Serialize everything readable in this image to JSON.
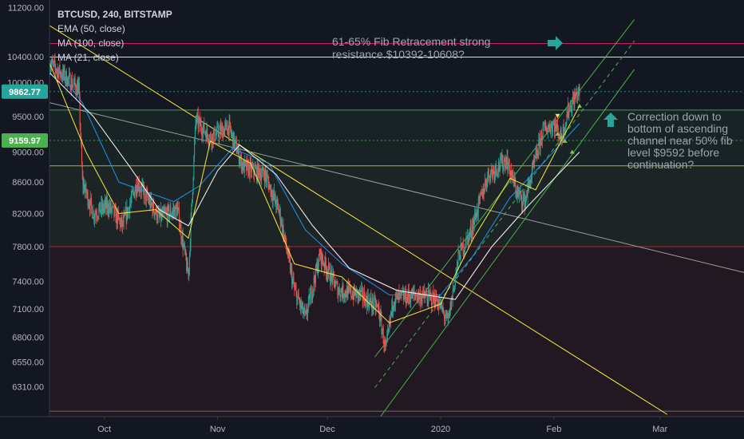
{
  "chart_data": {
    "type": "candlestick",
    "legend": {
      "title": "BTCUSD, 240, BITSTAMP",
      "indicators": [
        "EMA (50, close)",
        "MA (100, close)",
        "MA (21, close)"
      ]
    },
    "y_axis": {
      "scale": "log",
      "ticks": [
        11200,
        10400,
        10000,
        9500,
        9000,
        8600,
        8200,
        7800,
        7400,
        7100,
        6800,
        6550,
        6310
      ],
      "tick_labels": [
        "11200.00",
        "10400.00",
        "10000.00",
        "9500.00",
        "9000.00",
        "8600.00",
        "8200.00",
        "7800.00",
        "7400.00",
        "7100.00",
        "6800.00",
        "6550.00",
        "6310.00"
      ],
      "ylim": [
        6030,
        11330
      ]
    },
    "x_axis": {
      "ticks": [
        {
          "label": "Oct",
          "date": "2019-10-01"
        },
        {
          "label": "Nov",
          "date": "2019-11-01"
        },
        {
          "label": "Dec",
          "date": "2019-12-01"
        },
        {
          "label": "2020",
          "date": "2020-01-01"
        },
        {
          "label": "Feb",
          "date": "2020-02-01"
        },
        {
          "label": "Mar",
          "date": "2020-03-01"
        }
      ],
      "xlim": [
        "2019-09-16",
        "2020-03-24"
      ]
    },
    "price_tags": [
      {
        "value": 9862.77,
        "label": "9862.77",
        "color": "#26a69a"
      },
      {
        "value": 9159.97,
        "label": "9159.97",
        "color": "#4caf50"
      }
    ],
    "horizontal_levels": [
      {
        "value": 10608,
        "color": "#e91e63"
      },
      {
        "value": 10392,
        "color": "#ffffff"
      },
      {
        "value": 9592,
        "color": "#4caf50"
      },
      {
        "value": 8815,
        "color": "#c8c832"
      },
      {
        "value": 7800,
        "color": "#c62828"
      },
      {
        "value": 6080,
        "color": "#787b86"
      }
    ],
    "zones": [
      {
        "from": 9592,
        "to": 8815,
        "color": "#4caf50"
      },
      {
        "from": 8815,
        "to": 7800,
        "color": "#8bc34a"
      },
      {
        "from": 7800,
        "to": 6030,
        "color": "#c62828"
      }
    ],
    "trend_lines": [
      {
        "from": {
          "x": "2019-09-16",
          "y": 10900
        },
        "to": {
          "x": "2020-03-03",
          "y": 6050
        },
        "color": "#ffeb3b",
        "dashed": false
      },
      {
        "from": {
          "x": "2019-09-16",
          "y": 9700
        },
        "to": {
          "x": "2020-03-24",
          "y": 7500
        },
        "color": "#9e9e9e",
        "dashed": false
      },
      {
        "from": {
          "x": "2019-12-14",
          "y": 6600
        },
        "to": {
          "x": "2020-02-23",
          "y": 11000
        },
        "color": "#4caf50",
        "dashed": false
      },
      {
        "from": {
          "x": "2019-12-14",
          "y": 6300
        },
        "to": {
          "x": "2020-02-23",
          "y": 10650
        },
        "color": "#4caf50",
        "dashed": true
      },
      {
        "from": {
          "x": "2019-12-14",
          "y": 5960
        },
        "to": {
          "x": "2020-02-23",
          "y": 10200
        },
        "color": "#4caf50",
        "dashed": false
      }
    ],
    "ohlc_path": [
      [
        "2019-09-16",
        10300
      ],
      [
        "2019-09-20",
        10100
      ],
      [
        "2019-09-24",
        9900
      ],
      [
        "2019-09-25",
        8600
      ],
      [
        "2019-09-28",
        8200
      ],
      [
        "2019-10-02",
        8300
      ],
      [
        "2019-10-06",
        8050
      ],
      [
        "2019-10-10",
        8600
      ],
      [
        "2019-10-16",
        8150
      ],
      [
        "2019-10-21",
        8250
      ],
      [
        "2019-10-24",
        7450
      ],
      [
        "2019-10-26",
        9450
      ],
      [
        "2019-10-30",
        9200
      ],
      [
        "2019-11-04",
        9350
      ],
      [
        "2019-11-08",
        8800
      ],
      [
        "2019-11-14",
        8700
      ],
      [
        "2019-11-18",
        8200
      ],
      [
        "2019-11-22",
        7300
      ],
      [
        "2019-11-25",
        7000
      ],
      [
        "2019-11-29",
        7700
      ],
      [
        "2019-12-04",
        7300
      ],
      [
        "2019-12-10",
        7250
      ],
      [
        "2019-12-15",
        7100
      ],
      [
        "2019-12-17",
        6650
      ],
      [
        "2019-12-19",
        7200
      ],
      [
        "2019-12-25",
        7250
      ],
      [
        "2019-12-31",
        7200
      ],
      [
        "2020-01-03",
        6950
      ],
      [
        "2020-01-06",
        7700
      ],
      [
        "2020-01-09",
        7950
      ],
      [
        "2020-01-14",
        8700
      ],
      [
        "2020-01-19",
        8900
      ],
      [
        "2020-01-22",
        8450
      ],
      [
        "2020-01-24",
        8350
      ],
      [
        "2020-01-29",
        9300
      ],
      [
        "2020-02-01",
        9400
      ],
      [
        "2020-02-03",
        9200
      ],
      [
        "2020-02-05",
        9600
      ],
      [
        "2020-02-07",
        9800
      ],
      [
        "2020-02-08",
        9862.77
      ]
    ],
    "moving_averages": [
      {
        "name": "EMA (50, close)",
        "color": "#2196f3",
        "points": [
          [
            "2019-09-16",
            10350
          ],
          [
            "2019-09-25",
            9700
          ],
          [
            "2019-10-05",
            8600
          ],
          [
            "2019-10-20",
            8350
          ],
          [
            "2019-10-27",
            8550
          ],
          [
            "2019-11-05",
            9050
          ],
          [
            "2019-11-15",
            8850
          ],
          [
            "2019-11-25",
            8000
          ],
          [
            "2019-12-05",
            7600
          ],
          [
            "2019-12-18",
            7250
          ],
          [
            "2020-01-01",
            7250
          ],
          [
            "2020-01-10",
            7700
          ],
          [
            "2020-01-20",
            8400
          ],
          [
            "2020-01-30",
            8900
          ],
          [
            "2020-02-08",
            9400
          ]
        ]
      },
      {
        "name": "MA (100, close)",
        "color": "#ffffff",
        "points": [
          [
            "2019-09-16",
            10150
          ],
          [
            "2019-09-28",
            9500
          ],
          [
            "2019-10-08",
            8800
          ],
          [
            "2019-10-16",
            8250
          ],
          [
            "2019-10-24",
            8050
          ],
          [
            "2019-11-01",
            8750
          ],
          [
            "2019-11-07",
            9100
          ],
          [
            "2019-11-17",
            8700
          ],
          [
            "2019-11-27",
            8050
          ],
          [
            "2019-12-07",
            7550
          ],
          [
            "2019-12-20",
            7300
          ],
          [
            "2020-01-05",
            7200
          ],
          [
            "2020-01-15",
            7800
          ],
          [
            "2020-01-25",
            8300
          ],
          [
            "2020-02-08",
            9000
          ]
        ]
      },
      {
        "name": "MA (21, close)",
        "color": "#ffeb3b",
        "points": [
          [
            "2019-09-16",
            10300
          ],
          [
            "2019-09-26",
            9000
          ],
          [
            "2019-10-05",
            8200
          ],
          [
            "2019-10-15",
            8250
          ],
          [
            "2019-10-24",
            7900
          ],
          [
            "2019-10-30",
            9150
          ],
          [
            "2019-11-10",
            8850
          ],
          [
            "2019-11-22",
            7600
          ],
          [
            "2019-12-05",
            7450
          ],
          [
            "2019-12-18",
            6950
          ],
          [
            "2020-01-01",
            7150
          ],
          [
            "2020-01-10",
            7900
          ],
          [
            "2020-01-20",
            8650
          ],
          [
            "2020-01-27",
            8500
          ],
          [
            "2020-02-08",
            9650
          ]
        ]
      }
    ],
    "signal_markers": [
      {
        "x": "2020-02-02",
        "y": 9500,
        "kind": "down"
      },
      {
        "x": "2020-02-02",
        "y": 9250,
        "kind": "up"
      },
      {
        "x": "2020-02-03",
        "y": 9200,
        "kind": "up"
      },
      {
        "x": "2020-02-04",
        "y": 9150,
        "kind": "up"
      },
      {
        "x": "2020-02-06",
        "y": 9000,
        "kind": "up"
      },
      {
        "x": "2020-02-08",
        "y": 9650,
        "kind": "up"
      }
    ],
    "annotations": [
      {
        "lines": [
          "61-65% Fib Retracement strong",
          "resistance.$10392-10608?"
        ],
        "arrow": "right"
      },
      {
        "lines": [
          "Correction down to",
          "bottom of ascending",
          "channel near 50% fib",
          "level $9592 before",
          "continuation?"
        ],
        "arrow": "up"
      }
    ],
    "colors": {
      "background": "#131722",
      "axis_text": "#b2b5be",
      "annotation_arrow": "#26a69a",
      "candle_up": "#26a69a",
      "candle_down": "#ef5350"
    }
  }
}
